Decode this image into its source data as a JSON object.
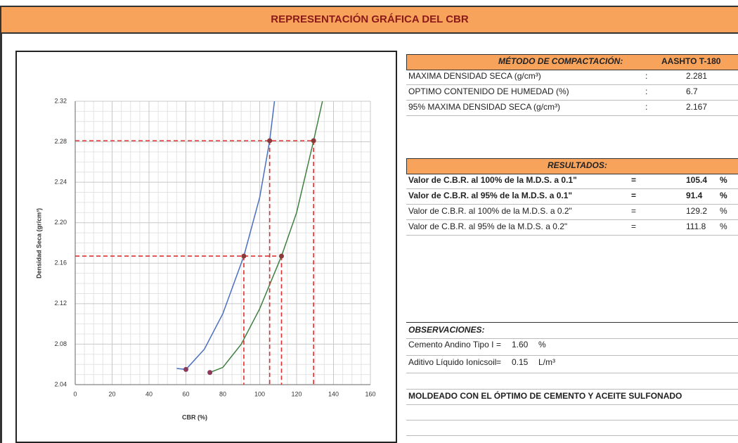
{
  "header": {
    "title": "REPRESENTACIÓN GRÁFICA DEL CBR"
  },
  "chart_data": {
    "type": "line",
    "xlabel": "CBR  (%)",
    "ylabel": "Densidad Seca (gr/cm³)",
    "xlim": [
      0,
      160
    ],
    "ylim": [
      2.04,
      2.32
    ],
    "xticks": [
      0,
      20,
      40,
      60,
      80,
      100,
      120,
      140,
      160
    ],
    "yticks": [
      2.04,
      2.08,
      2.12,
      2.16,
      {
        "value": 2.2,
        "label": "2.20"
      },
      2.24,
      2.28,
      2.32
    ],
    "grid": true,
    "series": [
      {
        "color": "#4a6fc0",
        "x": [
          55,
          60,
          70,
          80,
          91.4,
          100,
          105.4,
          108
        ],
        "values": [
          2.056,
          2.055,
          2.075,
          2.11,
          2.167,
          2.225,
          2.281,
          2.32
        ]
      },
      {
        "color": "#3f7f3f",
        "x": [
          73,
          80,
          90,
          100,
          111.8,
          120,
          129.2,
          134
        ],
        "values": [
          2.052,
          2.057,
          2.08,
          2.115,
          2.167,
          2.21,
          2.281,
          2.32
        ]
      }
    ]
  },
  "compaction": {
    "heading": "MÉTODO DE COMPACTACIÓN:",
    "method": "AASHTO T-180",
    "rows": [
      {
        "label": "MAXIMA DENSIDAD SECA (g/cm³)",
        "sep": ":",
        "value": 2.281
      },
      {
        "label": "OPTIMO CONTENIDO DE HUMEDAD (%)",
        "sep": ":",
        "value": 6.7
      },
      {
        "label": "95% MAXIMA DENSIDAD SECA (g/cm³)",
        "sep": ":",
        "value": 2.167
      }
    ]
  },
  "results": {
    "heading": "RESULTADOS:",
    "rows": [
      {
        "label": "Valor de C.B.R. al 100% de la M.D.S. a 0.1\"",
        "sep": "=",
        "value": 105.4,
        "unit": "%"
      },
      {
        "label": "Valor de C.B.R. al  95% de la M.D.S. a 0.1\"",
        "sep": "=",
        "value": 91.4,
        "unit": "%"
      },
      {
        "label": "Valor de C.B.R. al 100% de la M.D.S. a 0.2\"",
        "sep": "=",
        "value": 129.2,
        "unit": "%"
      },
      {
        "label": "Valor de C.B.R. al  95% de la M.D.S. a 0.2\"",
        "sep": "=",
        "value": 111.8,
        "unit": "%"
      }
    ]
  },
  "observations": {
    "heading": "OBSERVACIONES:",
    "rows": [
      {
        "label": "Cemento Andino Tipo I",
        "sep": "=",
        "value": "1.60",
        "unit": "%"
      },
      {
        "label": "Aditivo Líquido Ionicsoil",
        "sep": "=",
        "value": "0.15",
        "unit": "L/m³"
      }
    ],
    "note": "MOLDEADO CON EL ÓPTIMO DE CEMENTO Y ACEITE SULFONADO"
  }
}
